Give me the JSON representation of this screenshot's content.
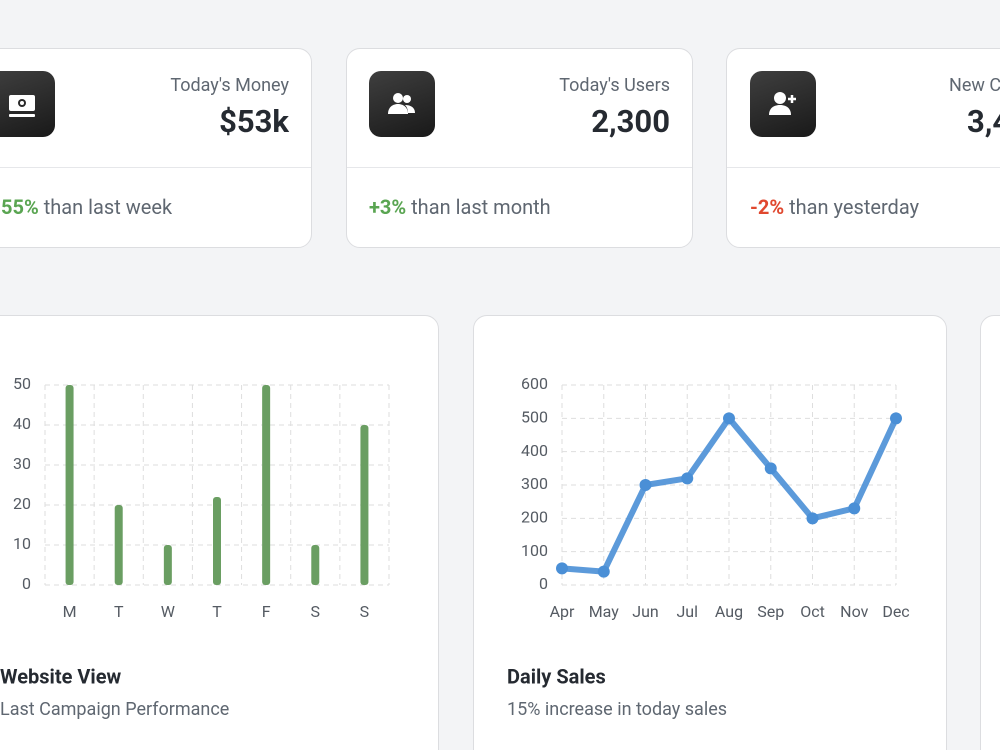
{
  "stats": [
    {
      "title": "Today's Money",
      "value": "$53k",
      "change": "55%",
      "note": "than last week",
      "change_color": "#5aa552"
    },
    {
      "title": "Today's Users",
      "value": "2,300",
      "change": "+3%",
      "note": "than last month",
      "change_color": "#5aa552"
    },
    {
      "title": "New C",
      "value": "3,4",
      "change": "-2%",
      "note": "than yesterday",
      "change_color": "#e0482f"
    }
  ],
  "chart_data": [
    {
      "type": "bar",
      "title": "Website View",
      "subtitle": "Last Campaign Performance",
      "categories": [
        "M",
        "T",
        "W",
        "T",
        "F",
        "S",
        "S"
      ],
      "values": [
        50,
        20,
        10,
        22,
        50,
        10,
        40
      ],
      "color": "#6a9e62",
      "ylim": [
        0,
        50
      ],
      "yticks": [
        0,
        10,
        20,
        30,
        40,
        50
      ],
      "grid": true
    },
    {
      "type": "line",
      "title": "Daily Sales",
      "subtitle": "15% increase in today sales",
      "categories": [
        "Apr",
        "May",
        "Jun",
        "Jul",
        "Aug",
        "Sep",
        "Oct",
        "Nov",
        "Dec"
      ],
      "values": [
        50,
        40,
        300,
        320,
        500,
        350,
        200,
        230,
        500
      ],
      "color": "#4a8fd6",
      "ylim": [
        0,
        600
      ],
      "yticks": [
        0,
        100,
        200,
        300,
        400,
        500,
        600
      ],
      "grid": true
    }
  ]
}
